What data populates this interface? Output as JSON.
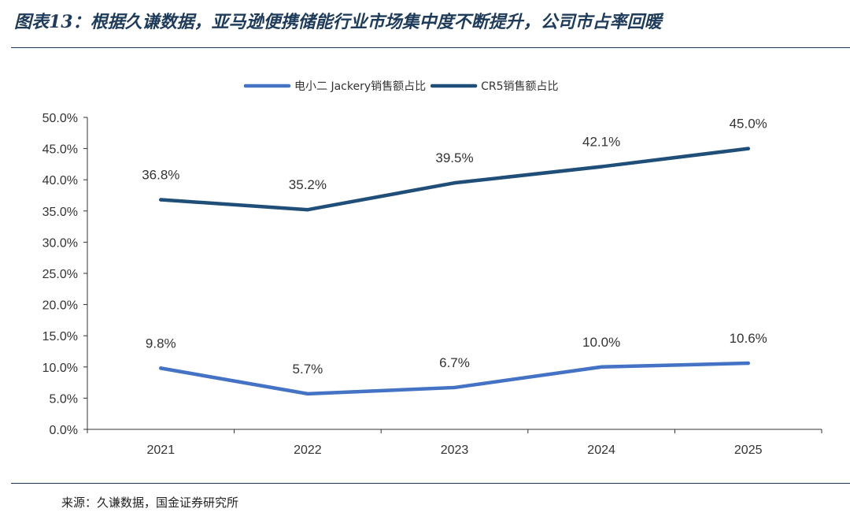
{
  "title": "图表13：根据久谦数据，亚马逊便携储能行业市场集中度不断提升，公司市占率回暖",
  "source": "来源：久谦数据，国金证券研究所",
  "chart_data": {
    "type": "line",
    "categories": [
      "2021",
      "2022",
      "2023",
      "2024",
      "2025"
    ],
    "series": [
      {
        "name": "电小二 Jackery销售额占比",
        "values": [
          9.8,
          5.7,
          6.7,
          10.0,
          10.6
        ],
        "labels": [
          "9.8%",
          "5.7%",
          "6.7%",
          "10.0%",
          "10.6%"
        ],
        "color": "#4472c4"
      },
      {
        "name": "CR5销售额占比",
        "values": [
          36.8,
          35.2,
          39.5,
          42.1,
          45.0
        ],
        "labels": [
          "36.8%",
          "35.2%",
          "39.5%",
          "42.1%",
          "45.0%"
        ],
        "color": "#1f4e79"
      }
    ],
    "yticks": [
      "0.0%",
      "5.0%",
      "10.0%",
      "15.0%",
      "20.0%",
      "25.0%",
      "30.0%",
      "35.0%",
      "40.0%",
      "45.0%",
      "50.0%"
    ],
    "ylim": [
      0,
      50
    ],
    "legend": "top-center",
    "grid": false
  }
}
